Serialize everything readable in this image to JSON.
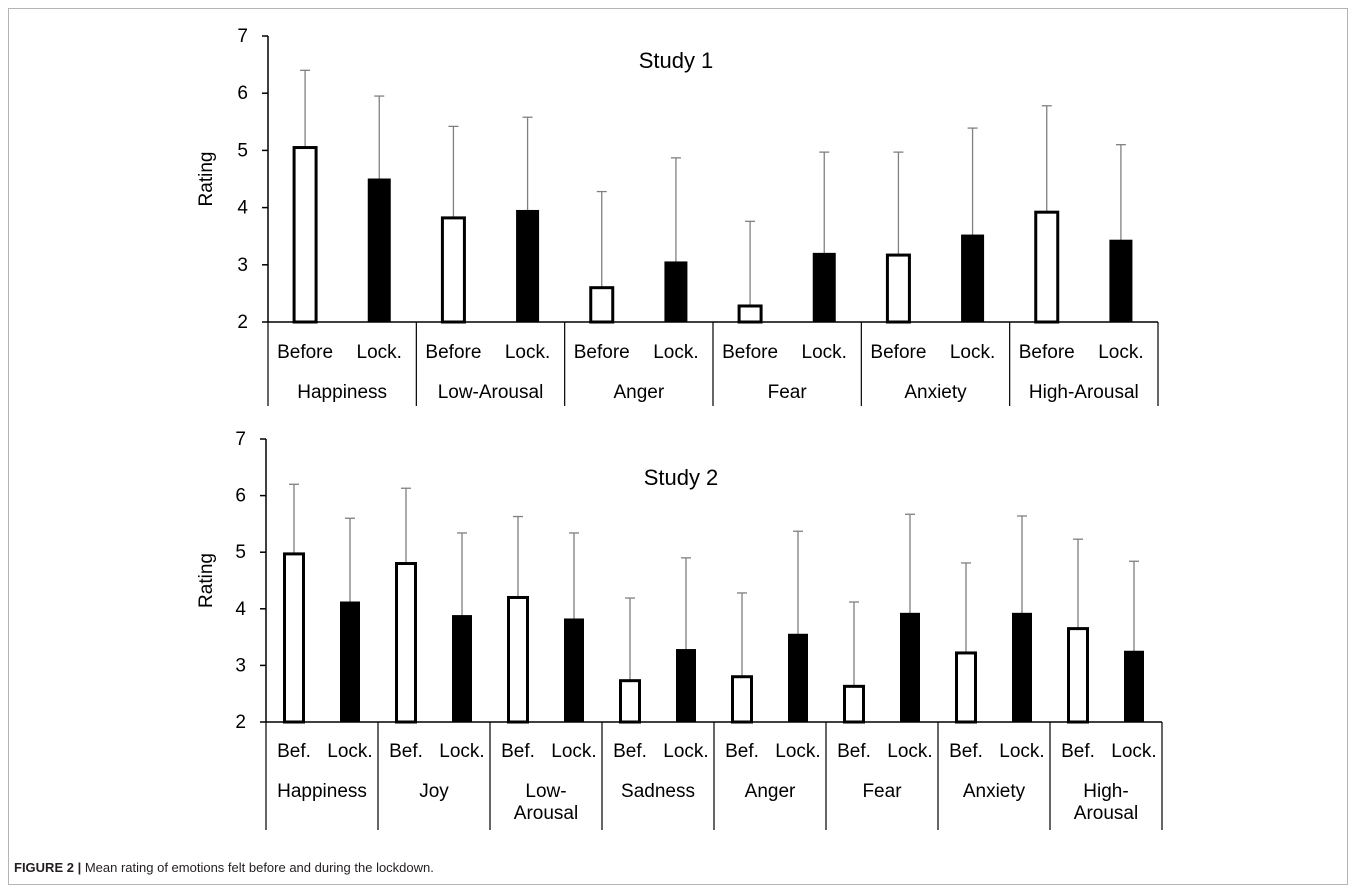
{
  "caption": {
    "label": "FIGURE 2 |",
    "text": "Mean rating of emotions felt before and during the lockdown."
  },
  "colors": {
    "before_fill": "#ffffff",
    "lockdown_fill": "#000000",
    "error_bar": "#808080",
    "axis": "#000000"
  },
  "chart_data": [
    {
      "type": "bar",
      "title": "Study 1",
      "ylabel": "Rating",
      "ylim": [
        2,
        7
      ],
      "yticks": [
        2,
        3,
        4,
        5,
        6,
        7
      ],
      "grid": false,
      "bar_labels": [
        "Before",
        "Lock."
      ],
      "groups": [
        {
          "name": "Happiness",
          "lines": [
            "Happiness"
          ],
          "before": 5.05,
          "before_err": 1.35,
          "lockdown": 4.5,
          "lockdown_err": 1.45
        },
        {
          "name": "Low-Arousal",
          "lines": [
            "Low-Arousal"
          ],
          "before": 3.82,
          "before_err": 1.6,
          "lockdown": 3.95,
          "lockdown_err": 1.63
        },
        {
          "name": "Anger",
          "lines": [
            "Anger"
          ],
          "before": 2.6,
          "before_err": 1.68,
          "lockdown": 3.05,
          "lockdown_err": 1.82
        },
        {
          "name": "Fear",
          "lines": [
            "Fear"
          ],
          "before": 2.28,
          "before_err": 1.48,
          "lockdown": 3.2,
          "lockdown_err": 1.77
        },
        {
          "name": "Anxiety",
          "lines": [
            "Anxiety"
          ],
          "before": 3.17,
          "before_err": 1.8,
          "lockdown": 3.52,
          "lockdown_err": 1.87
        },
        {
          "name": "High-Arousal",
          "lines": [
            "High-Arousal"
          ],
          "before": 3.92,
          "before_err": 1.86,
          "lockdown": 3.43,
          "lockdown_err": 1.67
        }
      ]
    },
    {
      "type": "bar",
      "title": "Study 2",
      "ylabel": "Rating",
      "ylim": [
        2,
        7
      ],
      "yticks": [
        2,
        3,
        4,
        5,
        6,
        7
      ],
      "grid": false,
      "bar_labels": [
        "Bef.",
        "Lock."
      ],
      "groups": [
        {
          "name": "Happiness",
          "lines": [
            "Happiness"
          ],
          "before": 4.97,
          "before_err": 1.23,
          "lockdown": 4.12,
          "lockdown_err": 1.48
        },
        {
          "name": "Joy",
          "lines": [
            "Joy"
          ],
          "before": 4.8,
          "before_err": 1.33,
          "lockdown": 3.88,
          "lockdown_err": 1.46
        },
        {
          "name": "Low-Arousal",
          "lines": [
            "Low-",
            "Arousal"
          ],
          "before": 4.2,
          "before_err": 1.43,
          "lockdown": 3.82,
          "lockdown_err": 1.52
        },
        {
          "name": "Sadness",
          "lines": [
            "Sadness"
          ],
          "before": 2.73,
          "before_err": 1.46,
          "lockdown": 3.28,
          "lockdown_err": 1.62
        },
        {
          "name": "Anger",
          "lines": [
            "Anger"
          ],
          "before": 2.8,
          "before_err": 1.48,
          "lockdown": 3.55,
          "lockdown_err": 1.82
        },
        {
          "name": "Fear",
          "lines": [
            "Fear"
          ],
          "before": 2.63,
          "before_err": 1.49,
          "lockdown": 3.92,
          "lockdown_err": 1.75
        },
        {
          "name": "Anxiety",
          "lines": [
            "Anxiety"
          ],
          "before": 3.22,
          "before_err": 1.59,
          "lockdown": 3.92,
          "lockdown_err": 1.72
        },
        {
          "name": "High-Arousal",
          "lines": [
            "High-",
            "Arousal"
          ],
          "before": 3.65,
          "before_err": 1.58,
          "lockdown": 3.25,
          "lockdown_err": 1.59
        }
      ]
    }
  ]
}
